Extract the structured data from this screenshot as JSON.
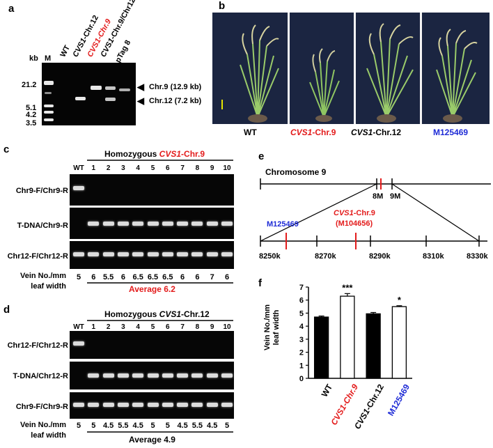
{
  "panel_a": {
    "letter": "a",
    "kb_header": "kb",
    "marker_header": "M",
    "lanes": [
      "WT",
      "CVS1-Chr.12",
      "CVS1-Chr.9",
      "CVS1-Chr.9/Chr12",
      "pTag 8"
    ],
    "lane_parts": {
      "wt": "WT",
      "chr12_italic": "CVS1",
      "chr12_rest": "-Chr.12",
      "chr9": "CVS1-Chr.9",
      "chr9_12_italic": "CVS1",
      "chr9_12_rest": "-Chr.9/Chr12",
      "ptag": "pTag 8"
    },
    "kb_marks": [
      "21.2",
      "5.1",
      "4.2",
      "3.5"
    ],
    "arrow_chr9": "Chr.9 (12.9 kb)",
    "arrow_chr12": "Chr.12 (7.2 kb)",
    "arrow_glyph": "◀"
  },
  "panel_b": {
    "letter": "b",
    "labels": {
      "wt": "WT",
      "chr9_italic": "CVS1",
      "chr9_rest": "-Chr.9",
      "chr12_italic": "CVS1",
      "chr12_rest": "-Chr.12",
      "m125469": "M125469"
    }
  },
  "panel_c": {
    "letter": "c",
    "title_prefix": "Homozygous ",
    "title_italic": "CVS1",
    "title_rest": "-Chr.9",
    "lanes": [
      "WT",
      "1",
      "2",
      "3",
      "4",
      "5",
      "6",
      "7",
      "8",
      "9",
      "10"
    ],
    "rows": [
      "Chr9-F/Chr9-R",
      "T-DNA/Chr9-R",
      "Chr12-F/Chr12-R"
    ],
    "vein_label_1": "Vein No./mm",
    "vein_label_2": "leaf width",
    "vein_values": [
      "5",
      "6",
      "5.5",
      "6",
      "6.5",
      "6.5",
      "6.5",
      "6",
      "6",
      "7",
      "6"
    ],
    "average": "Average 6.2"
  },
  "panel_d": {
    "letter": "d",
    "title_prefix": "Homozygous ",
    "title_italic": "CVS1",
    "title_rest": "-Chr.12",
    "lanes": [
      "WT",
      "1",
      "2",
      "3",
      "4",
      "5",
      "6",
      "7",
      "8",
      "9",
      "10"
    ],
    "rows": [
      "Chr12-F/Chr12-R",
      "T-DNA/Chr12-R",
      "Chr9-F/Chr9-R"
    ],
    "vein_label_1": "Vein No./mm",
    "vein_label_2": "leaf width",
    "vein_values": [
      "5",
      "5",
      "4.5",
      "5.5",
      "4.5",
      "5",
      "5",
      "4.5",
      "5.5",
      "4.5",
      "5"
    ],
    "average": "Average 4.9"
  },
  "panel_e": {
    "letter": "e",
    "chromosome": "Chromosome 9",
    "mark_8m": "8M",
    "mark_9m": "9M",
    "m125469": "M125469",
    "cvs_italic": "CVS1",
    "cvs_rest": "-Chr.9",
    "m104656": "(M104656)",
    "ticks": [
      "8250k",
      "8270k",
      "8290k",
      "8310k",
      "8330k"
    ]
  },
  "panel_f": {
    "letter": "f",
    "ylabel_1": "Vein No./mm",
    "ylabel_2": "leaf width",
    "significance": [
      "",
      "***",
      "",
      "*"
    ],
    "xlabels": {
      "wt": "WT",
      "chr9": "CVS1-Chr.9",
      "chr12_italic": "CVS1",
      "chr12_rest": "-Chr.12",
      "m125469": "M125469"
    }
  },
  "chart_data": {
    "type": "bar",
    "categories": [
      "WT",
      "CVS1-Chr.9",
      "CVS1-Chr.12",
      "M125469"
    ],
    "values": [
      4.7,
      6.3,
      4.95,
      5.5
    ],
    "errors": [
      0.08,
      0.2,
      0.1,
      0.07
    ],
    "bar_fill": [
      "#000000",
      "#ffffff",
      "#000000",
      "#ffffff"
    ],
    "label_colors": [
      "#000000",
      "#e31b1b",
      "#000000",
      "#1e2bd6"
    ],
    "ylabel": "Vein No./mm leaf width",
    "ylim": [
      0,
      7
    ],
    "yticks": [
      "0",
      "1",
      "2",
      "3",
      "4",
      "5",
      "6",
      "7"
    ],
    "grid": false
  },
  "colors": {
    "red": "#e31b1b",
    "blue": "#1e2bd6",
    "gel": "#060606",
    "photo_background": "#1b2541"
  }
}
